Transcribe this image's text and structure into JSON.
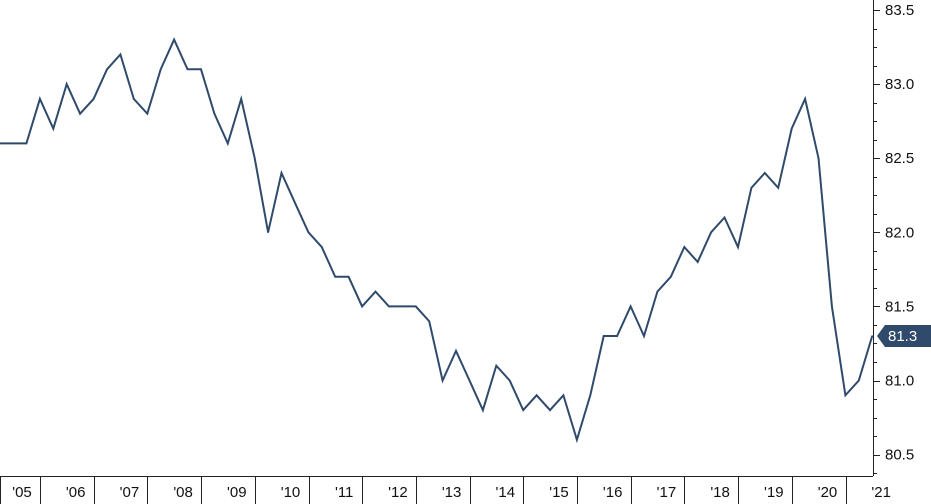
{
  "chart_data": {
    "type": "line",
    "title": "",
    "xlabel": "",
    "ylabel": "",
    "ylim": [
      80.45,
      83.55
    ],
    "xlim": [
      2005.0,
      2021.2
    ],
    "y_ticks": [
      80.5,
      81.0,
      81.5,
      82.0,
      82.5,
      83.0,
      83.5
    ],
    "y_tick_labels": [
      "80.5",
      "81.0",
      "81.5",
      "82.0",
      "82.5",
      "83.0",
      "83.5"
    ],
    "x_tick_labels": [
      "'05",
      "'06",
      "'07",
      "'08",
      "'09",
      "'10",
      "'11",
      "'12",
      "'13",
      "'14",
      "'15",
      "'16",
      "'17",
      "'18",
      "'19",
      "'20",
      "'21"
    ],
    "x_tick_years": [
      2005,
      2006,
      2007,
      2008,
      2009,
      2010,
      2011,
      2012,
      2013,
      2014,
      2015,
      2016,
      2017,
      2018,
      2019,
      2020,
      2021
    ],
    "grid": false,
    "legend": "none",
    "line_color": "#2f4a6b",
    "last_value_label": "81.3",
    "series": [
      {
        "x": [
          2005.0,
          2005.25,
          2005.5,
          2005.75,
          2006.0,
          2006.25,
          2006.5,
          2006.75,
          2007.0,
          2007.25,
          2007.5,
          2007.75,
          2008.0,
          2008.25,
          2008.5,
          2008.75,
          2009.0,
          2009.25,
          2009.5,
          2009.75,
          2010.0,
          2010.25,
          2010.5,
          2010.75,
          2011.0,
          2011.25,
          2011.5,
          2011.75,
          2012.0,
          2012.25,
          2012.5,
          2012.75,
          2013.0,
          2013.25,
          2013.5,
          2013.75,
          2014.0,
          2014.25,
          2014.5,
          2014.75,
          2015.0,
          2015.25,
          2015.5,
          2015.75,
          2016.0,
          2016.25,
          2016.5,
          2016.75,
          2017.0,
          2017.25,
          2017.5,
          2017.75,
          2018.0,
          2018.25,
          2018.5,
          2018.75,
          2019.0,
          2019.25,
          2019.5,
          2019.75,
          2020.0,
          2020.25,
          2020.5,
          2020.75,
          2021.0
        ],
        "values": [
          82.6,
          82.6,
          82.9,
          82.7,
          83.0,
          82.8,
          82.9,
          83.1,
          83.2,
          82.9,
          82.8,
          83.1,
          83.3,
          83.1,
          83.1,
          82.8,
          82.6,
          82.9,
          82.5,
          82.0,
          82.4,
          82.2,
          82.0,
          81.9,
          81.7,
          81.7,
          81.5,
          81.6,
          81.5,
          81.5,
          81.5,
          81.4,
          81.0,
          81.2,
          81.0,
          80.8,
          81.1,
          81.0,
          80.8,
          80.9,
          80.8,
          80.9,
          80.6,
          80.9,
          81.3,
          81.3,
          81.5,
          81.3,
          81.6,
          81.7,
          81.9,
          81.8,
          82.0,
          82.1,
          81.9,
          82.3,
          82.4,
          82.3,
          82.7,
          82.9,
          82.5,
          81.5,
          80.9,
          81.0,
          81.3
        ]
      }
    ]
  }
}
